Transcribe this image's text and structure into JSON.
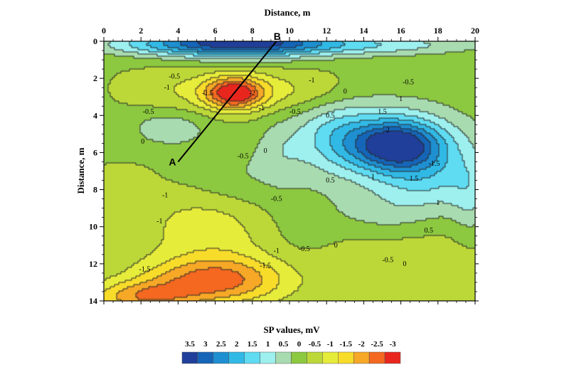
{
  "chart_data": {
    "type": "heatmap",
    "title": "",
    "xlabel": "Distance, m",
    "ylabel": "Distance, m",
    "x_axis_position": "top",
    "xlim": [
      0,
      20
    ],
    "ylim": [
      0,
      14
    ],
    "y_inverted": true,
    "x_ticks": [
      0,
      2,
      4,
      6,
      8,
      10,
      12,
      14,
      16,
      18,
      20
    ],
    "y_ticks": [
      0,
      2,
      4,
      6,
      8,
      10,
      12,
      14
    ],
    "grid": false,
    "colorbar": {
      "title": "SP values, mV",
      "position": "bottom",
      "levels": [
        3.5,
        3,
        2.5,
        2,
        1.5,
        1,
        0.5,
        0,
        -0.5,
        -1,
        -1.5,
        -2,
        -2.5,
        -3
      ],
      "level_labels": [
        "3.5",
        "3",
        "2.5",
        "2",
        "1.5",
        "1",
        "0.5",
        "0",
        "-0.5",
        "-1",
        "-1.5",
        "-2",
        "-2.5",
        "-3"
      ],
      "colors": [
        "#1f3f9a",
        "#1565b8",
        "#1e8fd0",
        "#31b9e6",
        "#5fdcf2",
        "#9df0ee",
        "#a8dcb0",
        "#8cc840",
        "#bcd838",
        "#e6ec3a",
        "#f8dc2a",
        "#f6a826",
        "#f46820",
        "#e8261e"
      ]
    },
    "profile_line": {
      "start": {
        "label": "A",
        "x": 4.0,
        "y": 6.5
      },
      "end": {
        "label": "B",
        "x": 9.3,
        "y": 0
      },
      "color": "#000000"
    },
    "anomalies": [
      {
        "x": 7.0,
        "y": 2.8,
        "sx": 1.1,
        "sy": 0.6,
        "value": -3.2
      },
      {
        "x": 7.6,
        "y": 2.7,
        "sx": 2.4,
        "sy": 0.9,
        "value": -0.9
      },
      {
        "x": 3.5,
        "y": 2.6,
        "sx": 1.6,
        "sy": 0.8,
        "value": -0.6
      },
      {
        "x": 11.0,
        "y": 2.7,
        "sx": 1.8,
        "sy": 0.7,
        "value": -0.6
      },
      {
        "x": 7.5,
        "y": 0.0,
        "sx": 3.2,
        "sy": 0.6,
        "value": 3.5
      },
      {
        "x": 14.0,
        "y": 0.2,
        "sx": 4.5,
        "sy": 0.4,
        "value": 1.2
      },
      {
        "x": 3.0,
        "y": 0.2,
        "sx": 3.0,
        "sy": 0.4,
        "value": 1.0
      },
      {
        "x": 3.5,
        "y": 4.7,
        "sx": 1.5,
        "sy": 0.7,
        "value": 0.7
      },
      {
        "x": 15.8,
        "y": 5.6,
        "sx": 1.6,
        "sy": 0.9,
        "value": 2.8
      },
      {
        "x": 15.0,
        "y": 5.5,
        "sx": 3.4,
        "sy": 1.6,
        "value": 1.5
      },
      {
        "x": 17.5,
        "y": 7.5,
        "sx": 2.0,
        "sy": 1.3,
        "value": 1.0
      },
      {
        "x": 12.5,
        "y": 5.0,
        "sx": 1.5,
        "sy": 1.2,
        "value": 0.6
      },
      {
        "x": 7.0,
        "y": 7.5,
        "sx": 2.0,
        "sy": 1.2,
        "value": 0.3
      },
      {
        "x": 9.5,
        "y": 6.0,
        "sx": 0.8,
        "sy": 1.2,
        "value": 0.2
      },
      {
        "x": 5.5,
        "y": 9.5,
        "sx": 2.5,
        "sy": 1.3,
        "value": -0.8
      },
      {
        "x": 6.0,
        "y": 12.9,
        "sx": 2.8,
        "sy": 0.9,
        "value": -2.4
      },
      {
        "x": 2.0,
        "y": 13.8,
        "sx": 2.0,
        "sy": 0.6,
        "value": -2.0
      },
      {
        "x": 6.5,
        "y": 11.5,
        "sx": 3.0,
        "sy": 1.8,
        "value": -0.8
      },
      {
        "x": 1.0,
        "y": 7.5,
        "sx": 0.9,
        "sy": 0.5,
        "value": -0.6
      },
      {
        "x": 10.5,
        "y": 10.5,
        "sx": 2.0,
        "sy": 1.8,
        "value": 0.25
      },
      {
        "x": 13.5,
        "y": 11.5,
        "sx": 2.0,
        "sy": 1.2,
        "value": -0.6
      },
      {
        "x": 17.5,
        "y": 12.0,
        "sx": 2.5,
        "sy": 1.8,
        "value": -0.6
      },
      {
        "x": 15.0,
        "y": 9.5,
        "sx": 2.0,
        "sy": 1.0,
        "value": 0.4
      },
      {
        "x": 19.8,
        "y": 8.5,
        "sx": 0.8,
        "sy": 1.5,
        "value": 0.6
      }
    ],
    "baseline_value": -0.2,
    "contour_labels": [
      {
        "text": "-0.5",
        "x": 3.8,
        "y": 1.9
      },
      {
        "text": "-1",
        "x": 3.4,
        "y": 2.5
      },
      {
        "text": "-1",
        "x": 11.2,
        "y": 2.1
      },
      {
        "text": "-0.5",
        "x": 16.4,
        "y": 2.2
      },
      {
        "text": "0",
        "x": 13.0,
        "y": 2.7
      },
      {
        "text": "1",
        "x": 16.0,
        "y": 3.1
      },
      {
        "text": "1.5",
        "x": 15.0,
        "y": 3.8
      },
      {
        "text": "2",
        "x": 15.3,
        "y": 4.8
      },
      {
        "text": "-0.5",
        "x": 2.4,
        "y": 3.8
      },
      {
        "text": "-0.5",
        "x": 10.3,
        "y": 3.8
      },
      {
        "text": "0.5",
        "x": 12.2,
        "y": 4.0
      },
      {
        "text": "-1",
        "x": 8.5,
        "y": 3.6
      },
      {
        "text": "-1.5",
        "x": 5.6,
        "y": 2.8
      },
      {
        "text": "-2",
        "x": 8.0,
        "y": 2.8
      },
      {
        "text": "0",
        "x": 2.1,
        "y": 5.4
      },
      {
        "text": "-0.5",
        "x": 7.5,
        "y": 6.2
      },
      {
        "text": "0",
        "x": 8.7,
        "y": 5.9
      },
      {
        "text": "0.5",
        "x": 12.2,
        "y": 7.5
      },
      {
        "text": "1",
        "x": 14.5,
        "y": 7.3
      },
      {
        "text": "-1.5",
        "x": 17.8,
        "y": 6.6
      },
      {
        "text": "1.5",
        "x": 16.7,
        "y": 7.4
      },
      {
        "text": "1",
        "x": 18.0,
        "y": 8.7
      },
      {
        "text": "-1",
        "x": 3.3,
        "y": 8.3
      },
      {
        "text": "-0.5",
        "x": 9.3,
        "y": 8.5
      },
      {
        "text": "-1",
        "x": 3.0,
        "y": 9.7
      },
      {
        "text": "0.5",
        "x": 17.5,
        "y": 10.2
      },
      {
        "text": "0",
        "x": 12.5,
        "y": 11.0
      },
      {
        "text": "-1",
        "x": 9.3,
        "y": 11.3
      },
      {
        "text": "-0.5",
        "x": 10.8,
        "y": 11.2
      },
      {
        "text": "-0.5",
        "x": 15.3,
        "y": 11.8
      },
      {
        "text": "0",
        "x": 16.2,
        "y": 12.0
      },
      {
        "text": "-1.5",
        "x": 2.2,
        "y": 12.3
      },
      {
        "text": "-1.5",
        "x": 8.7,
        "y": 12.1
      }
    ]
  }
}
